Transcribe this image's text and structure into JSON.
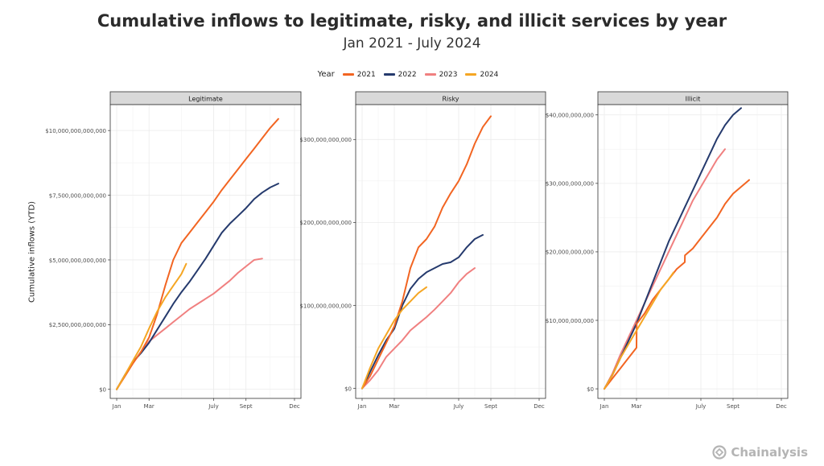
{
  "title": "Cumulative inflows to legitimate, risky, and illicit services by year",
  "subtitle": "Jan 2021 - July 2024",
  "logo_text": "Chainalysis",
  "chart_data": {
    "type": "line",
    "ylabel": "Cumulative inflows (YTD)",
    "legend_title": "Year",
    "legend_placement": "top-center",
    "grid": true,
    "x_ticks": [
      {
        "label": "Jan",
        "month": 0
      },
      {
        "label": "Mar",
        "month": 2
      },
      {
        "label": "July",
        "month": 6
      },
      {
        "label": "Sept",
        "month": 8
      },
      {
        "label": "Dec",
        "month": 11
      }
    ],
    "xlim": [
      -0.4,
      11.4
    ],
    "series": [
      {
        "name": "2021",
        "color": "#f26522"
      },
      {
        "name": "2022",
        "color": "#253a6d"
      },
      {
        "name": "2023",
        "color": "#f08080"
      },
      {
        "name": "2024",
        "color": "#f5a623"
      }
    ],
    "panels": [
      {
        "title": "Legitimate",
        "ylim": [
          -350000000000.0,
          11000000000000.0
        ],
        "y_ticks": [
          0,
          2500000000000.0,
          5000000000000.0,
          7500000000000.0,
          10000000000000.0
        ],
        "y_tick_labels": [
          "$0",
          "$2,500,000,000,000",
          "$5,000,000,000,000",
          "$7,500,000,000,000",
          "$10,000,000,000,000"
        ],
        "lines": {
          "2021": [
            [
              0,
              0
            ],
            [
              0.5,
              500000000000.0
            ],
            [
              1,
              1000000000000.0
            ],
            [
              1.5,
              1450000000000.0
            ],
            [
              2,
              2000000000000.0
            ],
            [
              2.5,
              2900000000000.0
            ],
            [
              3,
              4000000000000.0
            ],
            [
              3.5,
              5000000000000.0
            ],
            [
              4,
              5650000000000.0
            ],
            [
              4.5,
              6050000000000.0
            ],
            [
              5,
              6450000000000.0
            ],
            [
              5.5,
              6850000000000.0
            ],
            [
              6,
              7250000000000.0
            ],
            [
              6.5,
              7700000000000.0
            ],
            [
              7,
              8100000000000.0
            ],
            [
              7.5,
              8500000000000.0
            ],
            [
              8,
              8900000000000.0
            ],
            [
              8.5,
              9300000000000.0
            ],
            [
              9,
              9700000000000.0
            ],
            [
              9.5,
              10100000000000.0
            ],
            [
              10,
              10450000000000.0
            ]
          ],
          "2022": [
            [
              0,
              0
            ],
            [
              0.5,
              550000000000.0
            ],
            [
              1,
              1050000000000.0
            ],
            [
              1.5,
              1400000000000.0
            ],
            [
              2,
              1800000000000.0
            ],
            [
              2.5,
              2300000000000.0
            ],
            [
              3,
              2800000000000.0
            ],
            [
              3.5,
              3300000000000.0
            ],
            [
              4,
              3750000000000.0
            ],
            [
              4.5,
              4150000000000.0
            ],
            [
              5,
              4600000000000.0
            ],
            [
              5.5,
              5050000000000.0
            ],
            [
              6,
              5550000000000.0
            ],
            [
              6.5,
              6050000000000.0
            ],
            [
              7,
              6400000000000.0
            ],
            [
              7.5,
              6700000000000.0
            ],
            [
              8,
              7000000000000.0
            ],
            [
              8.5,
              7350000000000.0
            ],
            [
              9,
              7600000000000.0
            ],
            [
              9.5,
              7800000000000.0
            ],
            [
              10,
              7950000000000.0
            ]
          ],
          "2023": [
            [
              0,
              0
            ],
            [
              0.5,
              550000000000.0
            ],
            [
              1,
              1000000000000.0
            ],
            [
              1.5,
              1450000000000.0
            ],
            [
              2,
              1850000000000.0
            ],
            [
              2.5,
              2100000000000.0
            ],
            [
              3,
              2350000000000.0
            ],
            [
              3.5,
              2600000000000.0
            ],
            [
              4,
              2850000000000.0
            ],
            [
              4.5,
              3100000000000.0
            ],
            [
              5,
              3300000000000.0
            ],
            [
              5.5,
              3500000000000.0
            ],
            [
              6,
              3700000000000.0
            ],
            [
              6.5,
              3950000000000.0
            ],
            [
              7,
              4200000000000.0
            ],
            [
              7.5,
              4500000000000.0
            ],
            [
              8,
              4750000000000.0
            ],
            [
              8.5,
              5000000000000.0
            ],
            [
              9,
              5050000000000.0
            ]
          ],
          "2024": [
            [
              0,
              0
            ],
            [
              0.5,
              550000000000.0
            ],
            [
              1,
              1100000000000.0
            ],
            [
              1.5,
              1650000000000.0
            ],
            [
              2,
              2350000000000.0
            ],
            [
              2.5,
              3000000000000.0
            ],
            [
              3,
              3550000000000.0
            ],
            [
              3.5,
              4000000000000.0
            ],
            [
              4,
              4450000000000.0
            ],
            [
              4.3,
              4850000000000.0
            ]
          ]
        }
      },
      {
        "title": "Risky",
        "ylim": [
          -12000000000.0,
          342000000000.0
        ],
        "y_ticks": [
          0,
          100000000000.0,
          200000000000.0,
          300000000000.0
        ],
        "y_tick_labels": [
          "$0",
          "$100,000,000,000",
          "$200,000,000,000",
          "$300,000,000,000"
        ],
        "lines": {
          "2021": [
            [
              0,
              0
            ],
            [
              0.5,
              15000000000.0
            ],
            [
              1,
              35000000000.0
            ],
            [
              1.5,
              55000000000.0
            ],
            [
              2,
              75000000000.0
            ],
            [
              2.5,
              105000000000.0
            ],
            [
              3,
              145000000000.0
            ],
            [
              3.5,
              170000000000.0
            ],
            [
              4,
              180000000000.0
            ],
            [
              4.5,
              195000000000.0
            ],
            [
              5,
              218000000000.0
            ],
            [
              5.5,
              235000000000.0
            ],
            [
              6,
              250000000000.0
            ],
            [
              6.5,
              270000000000.0
            ],
            [
              7,
              295000000000.0
            ],
            [
              7.5,
              315000000000.0
            ],
            [
              8,
              328000000000.0
            ]
          ],
          "2022": [
            [
              0,
              0
            ],
            [
              0.5,
              20000000000.0
            ],
            [
              1,
              40000000000.0
            ],
            [
              1.5,
              58000000000.0
            ],
            [
              2,
              72000000000.0
            ],
            [
              2.5,
              100000000000.0
            ],
            [
              3,
              120000000000.0
            ],
            [
              3.5,
              132000000000.0
            ],
            [
              4,
              140000000000.0
            ],
            [
              4.5,
              145000000000.0
            ],
            [
              5,
              150000000000.0
            ],
            [
              5.5,
              152000000000.0
            ],
            [
              6,
              158000000000.0
            ],
            [
              6.5,
              170000000000.0
            ],
            [
              7,
              180000000000.0
            ],
            [
              7.5,
              185000000000.0
            ]
          ],
          "2023": [
            [
              0,
              0
            ],
            [
              0.5,
              10000000000.0
            ],
            [
              1,
              22000000000.0
            ],
            [
              1.5,
              38000000000.0
            ],
            [
              2,
              48000000000.0
            ],
            [
              2.5,
              58000000000.0
            ],
            [
              3,
              70000000000.0
            ],
            [
              3.5,
              78000000000.0
            ],
            [
              4,
              86000000000.0
            ],
            [
              4.5,
              95000000000.0
            ],
            [
              5,
              105000000000.0
            ],
            [
              5.5,
              115000000000.0
            ],
            [
              6,
              128000000000.0
            ],
            [
              6.5,
              138000000000.0
            ],
            [
              7,
              145000000000.0
            ]
          ],
          "2024": [
            [
              0,
              0
            ],
            [
              0.5,
              25000000000.0
            ],
            [
              1,
              48000000000.0
            ],
            [
              1.5,
              65000000000.0
            ],
            [
              2,
              82000000000.0
            ],
            [
              2.5,
              95000000000.0
            ],
            [
              3,
              105000000000.0
            ],
            [
              3.5,
              115000000000.0
            ],
            [
              4,
              122000000000.0
            ]
          ]
        }
      },
      {
        "title": "Illicit",
        "ylim": [
          -1400000000.0,
          41500000000.0
        ],
        "y_ticks": [
          0,
          10000000000.0,
          20000000000.0,
          30000000000.0,
          40000000000.0
        ],
        "y_tick_labels": [
          "$0",
          "$10,000,000,000",
          "$20,000,000,000",
          "$30,000,000,000",
          "$40,000,000,000"
        ],
        "lines": {
          "2021": [
            [
              0,
              0
            ],
            [
              0.5,
              1500000000.0
            ],
            [
              1,
              3000000000.0
            ],
            [
              1.5,
              4500000000.0
            ],
            [
              2,
              6000000000.0
            ],
            [
              2.01,
              9500000000.0
            ],
            [
              2.5,
              11000000000.0
            ],
            [
              3,
              13000000000.0
            ],
            [
              3.5,
              14500000000.0
            ],
            [
              4,
              16000000000.0
            ],
            [
              4.5,
              17500000000.0
            ],
            [
              5,
              18500000000.0
            ],
            [
              5.01,
              19500000000.0
            ],
            [
              5.5,
              20500000000.0
            ],
            [
              6,
              22000000000.0
            ],
            [
              6.5,
              23500000000.0
            ],
            [
              7,
              25000000000.0
            ],
            [
              7.5,
              27000000000.0
            ],
            [
              8,
              28500000000.0
            ],
            [
              8.5,
              29500000000.0
            ],
            [
              9,
              30500000000.0
            ]
          ],
          "2022": [
            [
              0,
              0
            ],
            [
              0.5,
              2000000000.0
            ],
            [
              1,
              4500000000.0
            ],
            [
              1.5,
              7000000000.0
            ],
            [
              2,
              9500000000.0
            ],
            [
              2.5,
              12500000000.0
            ],
            [
              3,
              15500000000.0
            ],
            [
              3.5,
              18500000000.0
            ],
            [
              4,
              21500000000.0
            ],
            [
              4.5,
              24000000000.0
            ],
            [
              5,
              26500000000.0
            ],
            [
              5.5,
              29000000000.0
            ],
            [
              6,
              31500000000.0
            ],
            [
              6.5,
              34000000000.0
            ],
            [
              7,
              36500000000.0
            ],
            [
              7.5,
              38500000000.0
            ],
            [
              8,
              40000000000.0
            ],
            [
              8.5,
              41000000000.0
            ]
          ],
          "2023": [
            [
              0,
              0
            ],
            [
              0.5,
              2200000000.0
            ],
            [
              1,
              5000000000.0
            ],
            [
              1.5,
              7500000000.0
            ],
            [
              2,
              10000000000.0
            ],
            [
              2.5,
              12500000000.0
            ],
            [
              3,
              15000000000.0
            ],
            [
              3.5,
              17500000000.0
            ],
            [
              4,
              20000000000.0
            ],
            [
              4.5,
              22500000000.0
            ],
            [
              5,
              25000000000.0
            ],
            [
              5.5,
              27500000000.0
            ],
            [
              6,
              29500000000.0
            ],
            [
              6.5,
              31500000000.0
            ],
            [
              7,
              33500000000.0
            ],
            [
              7.5,
              35000000000.0
            ]
          ],
          "2024": [
            [
              0,
              0
            ],
            [
              0.5,
              2000000000.0
            ],
            [
              1,
              4500000000.0
            ],
            [
              1.5,
              6500000000.0
            ],
            [
              2,
              8500000000.0
            ],
            [
              2.5,
              10500000000.0
            ],
            [
              3,
              12500000000.0
            ],
            [
              3.5,
              14500000000.0
            ],
            [
              4,
              16000000000.0
            ],
            [
              4.3,
              17000000000.0
            ]
          ]
        }
      }
    ]
  }
}
